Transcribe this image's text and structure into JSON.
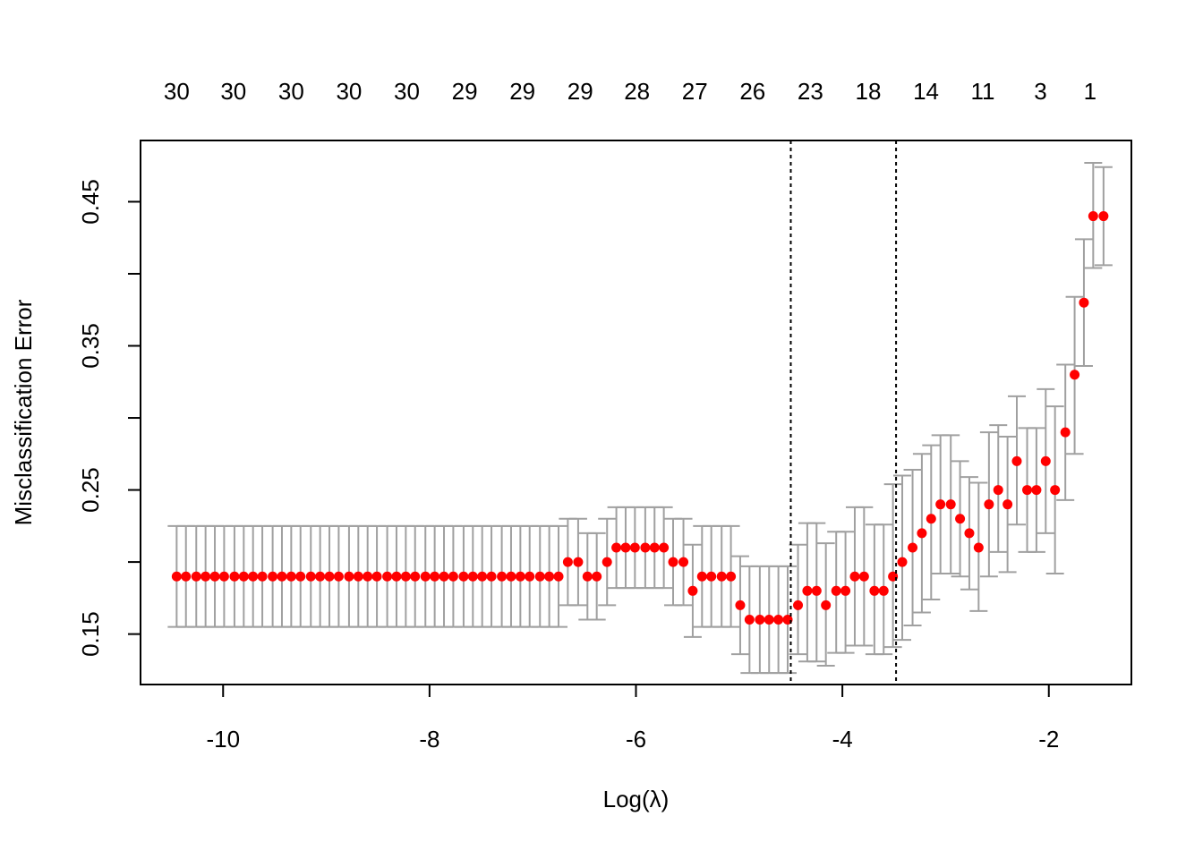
{
  "chart_data": {
    "type": "scatter",
    "title": "",
    "xlabel": "Log(λ)",
    "ylabel": "Misclassification Error",
    "xlim": [
      -10.8,
      -1.2
    ],
    "ylim": [
      0.115,
      0.4925
    ],
    "x_ticks": [
      -10,
      -8,
      -6,
      -4,
      -2
    ],
    "x_tick_labels": [
      "-10",
      "-8",
      "-6",
      "-4",
      "-2"
    ],
    "y_ticks": [
      0.15,
      0.2,
      0.25,
      0.3,
      0.35,
      0.4,
      0.45
    ],
    "y_tick_labels": [
      "0.15",
      "",
      "0.25",
      "",
      "0.35",
      "",
      "0.45"
    ],
    "top_axis": {
      "x": [
        -10.45,
        -9.9,
        -9.34,
        -8.78,
        -8.22,
        -7.66,
        -7.1,
        -6.54,
        -5.99,
        -5.43,
        -4.87,
        -4.31,
        -3.75,
        -3.19,
        -2.64,
        -2.08,
        -1.6
      ],
      "labels": [
        "30",
        "30",
        "30",
        "30",
        "30",
        "29",
        "29",
        "29",
        "28",
        "27",
        "26",
        "23",
        "18",
        "14",
        "11",
        "3",
        "1"
      ]
    },
    "reference_lines": [
      -4.5,
      -3.48
    ],
    "grid": false,
    "colors": {
      "point": "#ff0000",
      "error_bar": "#a0a0a0",
      "reference_line": "#000000",
      "frame": "#000000"
    },
    "series": [
      {
        "x": [
          -10.45,
          -10.36,
          -10.26,
          -10.17,
          -10.08,
          -9.99,
          -9.89,
          -9.8,
          -9.71,
          -9.62,
          -9.52,
          -9.43,
          -9.34,
          -9.25,
          -9.15,
          -9.06,
          -8.97,
          -8.88,
          -8.78,
          -8.69,
          -8.6,
          -8.51,
          -8.41,
          -8.32,
          -8.23,
          -8.14,
          -8.04,
          -7.95,
          -7.86,
          -7.77,
          -7.67,
          -7.58,
          -7.49,
          -7.4,
          -7.3,
          -7.21,
          -7.12,
          -7.03,
          -6.93,
          -6.84,
          -6.75,
          -6.66,
          -6.56,
          -6.47,
          -6.38,
          -6.28,
          -6.19,
          -6.1,
          -6.01,
          -5.91,
          -5.82,
          -5.73,
          -5.64,
          -5.54,
          -5.45,
          -5.36,
          -5.27,
          -5.17,
          -5.08,
          -4.99,
          -4.9,
          -4.8,
          -4.71,
          -4.62,
          -4.53,
          -4.43,
          -4.34,
          -4.25,
          -4.16,
          -4.06,
          -3.97,
          -3.88,
          -3.79,
          -3.69,
          -3.6,
          -3.51,
          -3.42,
          -3.32,
          -3.23,
          -3.14,
          -3.05,
          -2.95,
          -2.86,
          -2.77,
          -2.68,
          -2.58,
          -2.49,
          -2.4,
          -2.31,
          -2.21,
          -2.12,
          -2.03,
          -1.94,
          -1.84,
          -1.75,
          -1.66,
          -1.57,
          -1.47
        ],
        "y": [
          0.19,
          0.19,
          0.19,
          0.19,
          0.19,
          0.19,
          0.19,
          0.19,
          0.19,
          0.19,
          0.19,
          0.19,
          0.19,
          0.19,
          0.19,
          0.19,
          0.19,
          0.19,
          0.19,
          0.19,
          0.19,
          0.19,
          0.19,
          0.19,
          0.19,
          0.19,
          0.19,
          0.19,
          0.19,
          0.19,
          0.19,
          0.19,
          0.19,
          0.19,
          0.19,
          0.19,
          0.19,
          0.19,
          0.19,
          0.19,
          0.19,
          0.2,
          0.2,
          0.19,
          0.19,
          0.2,
          0.21,
          0.21,
          0.21,
          0.21,
          0.21,
          0.21,
          0.2,
          0.2,
          0.18,
          0.19,
          0.19,
          0.19,
          0.19,
          0.17,
          0.16,
          0.16,
          0.16,
          0.16,
          0.16,
          0.17,
          0.18,
          0.18,
          0.17,
          0.18,
          0.18,
          0.19,
          0.19,
          0.18,
          0.18,
          0.19,
          0.2,
          0.21,
          0.22,
          0.23,
          0.24,
          0.24,
          0.23,
          0.22,
          0.21,
          0.24,
          0.25,
          0.24,
          0.27,
          0.25,
          0.25,
          0.27,
          0.25,
          0.29,
          0.33,
          0.38,
          0.44,
          0.44
        ],
        "lower": [
          0.155,
          0.155,
          0.155,
          0.155,
          0.155,
          0.155,
          0.155,
          0.155,
          0.155,
          0.155,
          0.155,
          0.155,
          0.155,
          0.155,
          0.155,
          0.155,
          0.155,
          0.155,
          0.155,
          0.155,
          0.155,
          0.155,
          0.155,
          0.155,
          0.155,
          0.155,
          0.155,
          0.155,
          0.155,
          0.155,
          0.155,
          0.155,
          0.155,
          0.155,
          0.155,
          0.155,
          0.155,
          0.155,
          0.155,
          0.155,
          0.155,
          0.17,
          0.17,
          0.16,
          0.16,
          0.17,
          0.182,
          0.182,
          0.182,
          0.182,
          0.182,
          0.182,
          0.17,
          0.17,
          0.148,
          0.155,
          0.155,
          0.155,
          0.155,
          0.136,
          0.123,
          0.123,
          0.123,
          0.123,
          0.123,
          0.136,
          0.131,
          0.131,
          0.128,
          0.137,
          0.137,
          0.142,
          0.142,
          0.136,
          0.136,
          0.141,
          0.146,
          0.156,
          0.165,
          0.174,
          0.192,
          0.192,
          0.19,
          0.181,
          0.166,
          0.19,
          0.207,
          0.193,
          0.226,
          0.207,
          0.207,
          0.22,
          0.192,
          0.243,
          0.275,
          0.336,
          0.404,
          0.406
        ],
        "upper": [
          0.225,
          0.225,
          0.225,
          0.225,
          0.225,
          0.225,
          0.225,
          0.225,
          0.225,
          0.225,
          0.225,
          0.225,
          0.225,
          0.225,
          0.225,
          0.225,
          0.225,
          0.225,
          0.225,
          0.225,
          0.225,
          0.225,
          0.225,
          0.225,
          0.225,
          0.225,
          0.225,
          0.225,
          0.225,
          0.225,
          0.225,
          0.225,
          0.225,
          0.225,
          0.225,
          0.225,
          0.225,
          0.225,
          0.225,
          0.225,
          0.225,
          0.23,
          0.23,
          0.22,
          0.22,
          0.23,
          0.238,
          0.238,
          0.238,
          0.238,
          0.238,
          0.238,
          0.23,
          0.23,
          0.212,
          0.225,
          0.225,
          0.225,
          0.225,
          0.204,
          0.197,
          0.197,
          0.197,
          0.197,
          0.197,
          0.212,
          0.227,
          0.227,
          0.213,
          0.221,
          0.221,
          0.238,
          0.238,
          0.226,
          0.226,
          0.254,
          0.26,
          0.264,
          0.275,
          0.281,
          0.288,
          0.288,
          0.27,
          0.259,
          0.255,
          0.29,
          0.295,
          0.287,
          0.315,
          0.293,
          0.293,
          0.32,
          0.308,
          0.337,
          0.384,
          0.424,
          0.477,
          0.474
        ]
      }
    ]
  }
}
